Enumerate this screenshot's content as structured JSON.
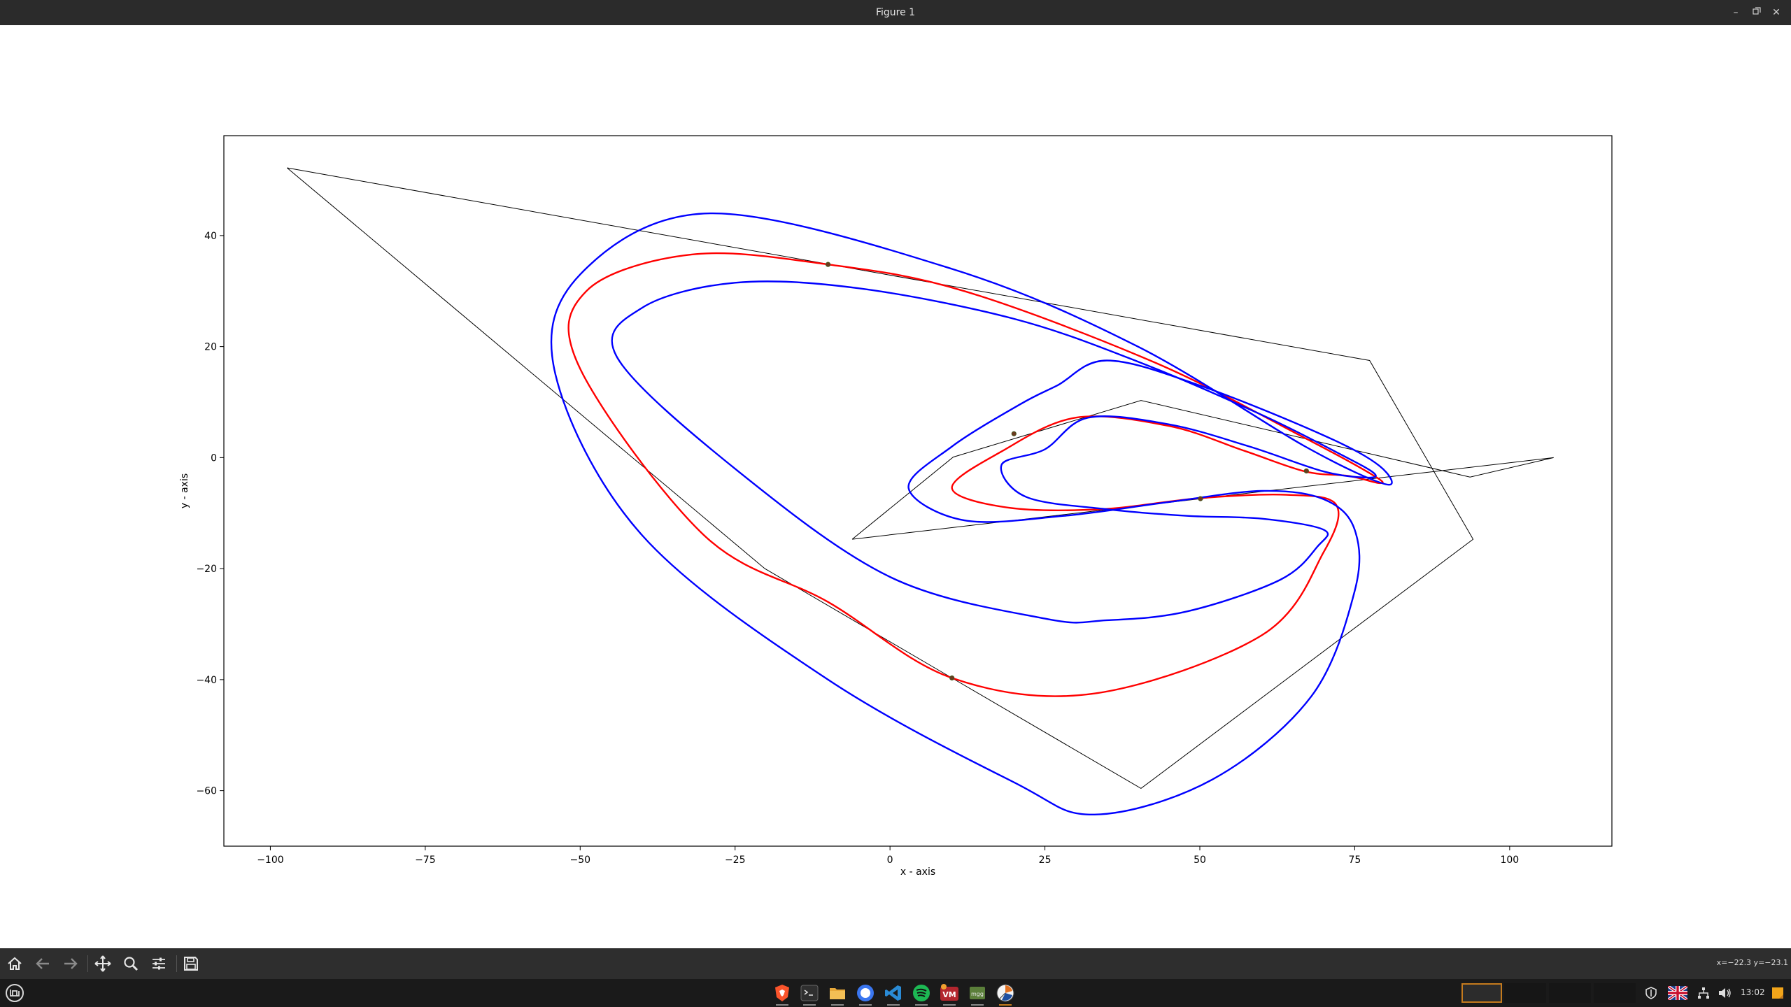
{
  "window": {
    "title": "Figure 1"
  },
  "colors": {
    "curve_outer": "#0000ff",
    "curve_mid": "#ff0000",
    "polygon": "#000000",
    "point": "#6b3a1f"
  },
  "chart_data": {
    "type": "line",
    "title": "",
    "xlabel": "x - axis",
    "ylabel": "y - axis",
    "xlim": [
      -107.5,
      116.5
    ],
    "ylim": [
      -70,
      58
    ],
    "xticks": [
      -100,
      -75,
      -50,
      -25,
      0,
      25,
      50,
      75,
      100
    ],
    "xtick_labels": [
      "−100",
      "−75",
      "−50",
      "−25",
      "0",
      "25",
      "50",
      "75",
      "100"
    ],
    "yticks": [
      -60,
      -40,
      -20,
      0,
      20,
      40
    ],
    "ytick_labels": [
      "−60",
      "−40",
      "−20",
      "0",
      "20",
      "40"
    ],
    "grid": false,
    "series": [
      {
        "style": "black-thin",
        "x": [
          -97.3,
          77.4,
          94.1,
          40.5,
          10,
          -20.2,
          -97.3
        ],
        "y": [
          52.2,
          17.5,
          -14.7,
          -59.6,
          -39.7,
          -20,
          52.2
        ]
      },
      {
        "style": "black-thin",
        "x": [
          -6.1,
          10.2,
          40.5,
          93.6,
          107.1,
          -6.1
        ],
        "y": [
          -14.7,
          0.1,
          10.3,
          -3.5,
          0,
          -14.7
        ]
      },
      {
        "style": "red-spline",
        "x": [
          -10,
          -32,
          -49,
          -50,
          -30,
          -10,
          10,
          33,
          60,
          70,
          72,
          64,
          50,
          34,
          19,
          10,
          18,
          30,
          45,
          57,
          67,
          74,
          79,
          78,
          67,
          43,
          12,
          -10
        ],
        "y": [
          34.8,
          36.6,
          30,
          16,
          -14,
          -26,
          -39.7,
          -42.5,
          -32,
          -17,
          -8.5,
          -6.7,
          -7.3,
          -9.3,
          -9,
          -5.5,
          1.1,
          7.2,
          5.7,
          1.3,
          -2.5,
          -3.3,
          -4.6,
          -3.2,
          3.5,
          17,
          30,
          34.8
        ]
      },
      {
        "style": "blue-spline",
        "x": [
          -29,
          -50,
          -54,
          -40,
          -10,
          20,
          33,
          52,
          68,
          75,
          75,
          70,
          60,
          45,
          28,
          12,
          3,
          10,
          21,
          27,
          35,
          50,
          70,
          79,
          80,
          67,
          40,
          10,
          -29
        ],
        "y": [
          44,
          33,
          15,
          -14,
          -40,
          -58.5,
          -64.3,
          -58,
          -43,
          -24,
          -13,
          -7.5,
          -6,
          -8,
          -10.5,
          -11.3,
          -5.5,
          2,
          9.6,
          13,
          17.5,
          13,
          4,
          -1.5,
          -4.8,
          2,
          20,
          34,
          44
        ]
      },
      {
        "style": "blue-spline",
        "x": [
          -25,
          -40,
          -44,
          -25,
          0,
          25,
          35,
          48,
          63,
          69,
          70,
          60,
          48,
          35,
          22,
          18,
          25,
          32,
          45,
          58,
          70,
          77,
          78,
          72,
          60,
          40,
          20,
          -5,
          -25
        ],
        "y": [
          31.5,
          27,
          18,
          -2,
          -21.5,
          -29,
          -29.3,
          -27.7,
          -22,
          -16,
          -13,
          -11,
          -10.5,
          -9.3,
          -7.1,
          -1.3,
          1.5,
          7.2,
          6,
          2,
          -2.5,
          -3.6,
          -2.7,
          1,
          7.7,
          17.3,
          25,
          30.5,
          31.5
        ]
      }
    ],
    "points": {
      "x": [
        -10,
        20,
        67.2,
        50.1,
        10
      ],
      "y": [
        34.8,
        4.3,
        -2.4,
        -7.4,
        -39.7
      ]
    }
  },
  "toolbar": {
    "buttons": [
      "home-icon",
      "back-icon",
      "forward-icon",
      "pan-icon",
      "zoom-icon",
      "configure-subplots-icon",
      "save-icon"
    ],
    "coordinate_readout": "x=−22.3 y=−23.1"
  },
  "taskbar": {
    "menu_icon": "linux-mint-menu-icon",
    "apps": [
      "brave-browser-icon",
      "terminal-icon",
      "file-manager-icon",
      "signal-icon",
      "vscode-icon",
      "spotify-icon",
      "virtualbox-icon",
      "minecraft-launcher-icon",
      "figure-window-icon"
    ],
    "clock": "13:02",
    "tray": [
      "shield-icon",
      "keyboard-layout-flag-icon",
      "network-icon",
      "volume-icon",
      "notes-icon"
    ]
  }
}
